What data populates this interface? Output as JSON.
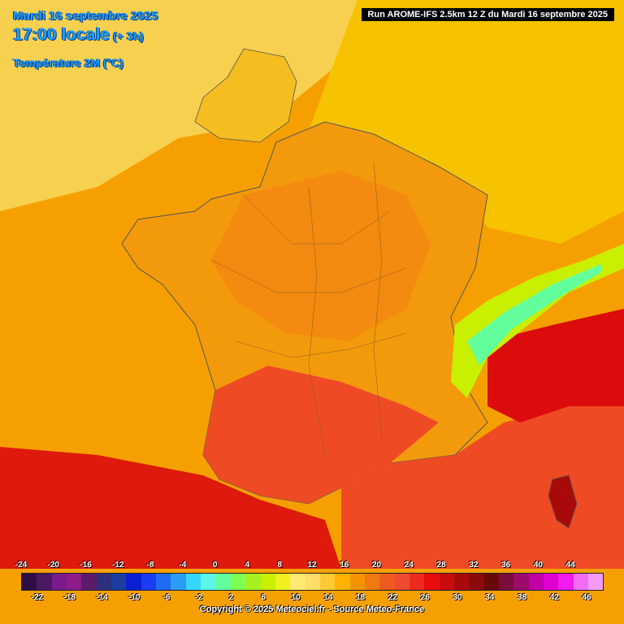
{
  "header": {
    "date": "Mardi 16 septembre 2025",
    "time": "17:00 locale",
    "offset": "(+ 3h)",
    "parameter": "Température 2M (°C)"
  },
  "run_info": "Run AROME-IFS 2.5km 12 Z du Mardi 16 septembre 2025",
  "legend": {
    "top_labels": [
      "-24",
      "-20",
      "-16",
      "-12",
      "-8",
      "-4",
      "0",
      "4",
      "8",
      "12",
      "16",
      "20",
      "24",
      "28",
      "32",
      "36",
      "40",
      "44"
    ],
    "bottom_labels": [
      "-22",
      "-18",
      "-14",
      "-10",
      "-6",
      "-2",
      "2",
      "6",
      "10",
      "14",
      "18",
      "22",
      "26",
      "30",
      "34",
      "38",
      "42",
      "46"
    ],
    "colors": [
      "#2d0f43",
      "#4b1863",
      "#7a1a8c",
      "#8f1a8a",
      "#5b1b66",
      "#2c2e7e",
      "#1b3d9e",
      "#0c1fd1",
      "#1a3cf2",
      "#1e6cf0",
      "#2b9cf5",
      "#35d6ff",
      "#5cf5e6",
      "#62ff9c",
      "#7cff50",
      "#a6f020",
      "#c8f000",
      "#f0f020",
      "#ffe970",
      "#ffdd66",
      "#ffc933",
      "#ffb300",
      "#f59400",
      "#f07a10",
      "#f05a20",
      "#f04a32",
      "#ee2a1e",
      "#e80c0c",
      "#c80c0c",
      "#a80a0a",
      "#8c0a0a",
      "#6a0808",
      "#7c0c3c",
      "#9c0a6c",
      "#c200a6",
      "#e000d0",
      "#f41cf0",
      "#f36cf3",
      "#f29af8"
    ]
  },
  "copyright": "Copyright © 2025 Meteociel.fr - Source Meteo-France",
  "map": {
    "colors": {
      "sea_west": "#f5a000",
      "sea_med": "#ee4a24",
      "land_base": "#f39a0c",
      "north": "#f7c400",
      "north_far": "#f8d85a",
      "hot": "#ee3a20",
      "very_hot": "#dd0c0c",
      "alps_green": "#7cff50",
      "alps_yellow": "#f0f020",
      "border": "#555555"
    }
  }
}
